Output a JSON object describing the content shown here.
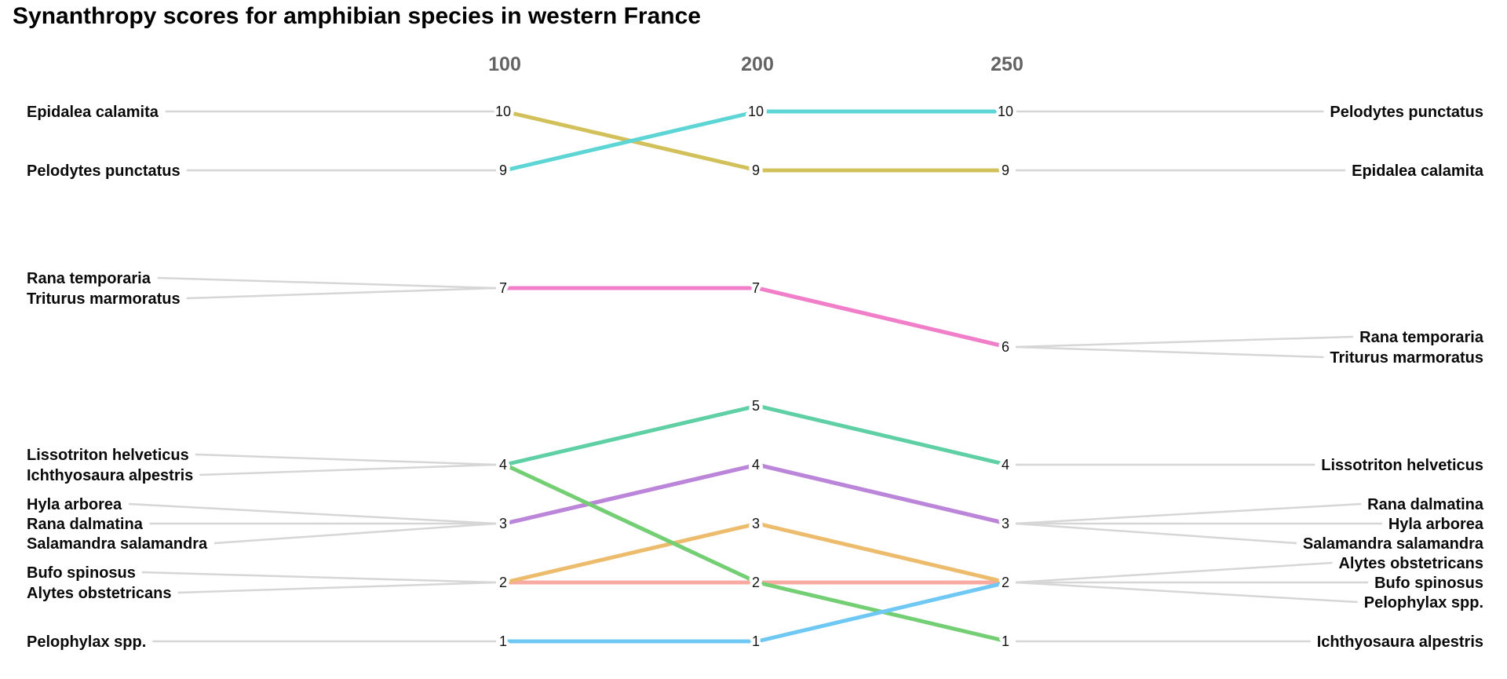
{
  "chart_data": {
    "type": "line",
    "subtype": "slope-bump-chart",
    "title": "Synanthropy scores for amphibian species in western France",
    "x_columns": [
      "100",
      "200",
      "250"
    ],
    "value_axis_range": [
      1,
      10
    ],
    "grid": false,
    "legend": "none",
    "series": [
      {
        "name": "Epidalea calamita",
        "values": [
          10,
          9,
          9
        ],
        "color": "#d2c05b"
      },
      {
        "name": "Triturus marmoratus",
        "values": [
          7,
          7,
          6
        ],
        "color": "#f07ec9"
      },
      {
        "name": "Rana temporaria",
        "values": [
          7,
          7,
          6
        ],
        "color": "#f07ec9"
      },
      {
        "name": "Pelodytes punctatus",
        "values": [
          9,
          10,
          10
        ],
        "color": "#5dd5d5"
      },
      {
        "name": "Salamandra salamandra",
        "values": [
          3,
          4,
          3
        ],
        "color": "#bb86d9"
      },
      {
        "name": "Rana dalmatina",
        "values": [
          3,
          4,
          3
        ],
        "color": "#bb86d9"
      },
      {
        "name": "Hyla arborea",
        "values": [
          3,
          4,
          3
        ],
        "color": "#bb86d9"
      },
      {
        "name": "Lissotriton helveticus",
        "values": [
          4,
          5,
          4
        ],
        "color": "#5fd0a5"
      },
      {
        "name": "Alytes obstetricans",
        "values": [
          2,
          2,
          2
        ],
        "color": "#f8aaa2"
      },
      {
        "name": "Bufo spinosus",
        "values": [
          2,
          3,
          2
        ],
        "color": "#edbb6c"
      },
      {
        "name": "Ichthyosaura alpestris",
        "values": [
          4,
          2,
          1
        ],
        "color": "#74ce74"
      },
      {
        "name": "Pelophylax spp.",
        "values": [
          1,
          1,
          2
        ],
        "color": "#6ec8f3"
      }
    ],
    "left_label_groups": [
      {
        "value": 10,
        "names": [
          "Epidalea calamita"
        ]
      },
      {
        "value": 9,
        "names": [
          "Pelodytes punctatus"
        ]
      },
      {
        "value": 7,
        "names": [
          "Rana temporaria",
          "Triturus marmoratus"
        ]
      },
      {
        "value": 4,
        "names": [
          "Lissotriton helveticus",
          "Ichthyosaura alpestris"
        ]
      },
      {
        "value": 3,
        "names": [
          "Hyla arborea",
          "Rana dalmatina",
          "Salamandra salamandra"
        ]
      },
      {
        "value": 2,
        "names": [
          "Bufo spinosus",
          "Alytes obstetricans"
        ]
      },
      {
        "value": 1,
        "names": [
          "Pelophylax spp."
        ]
      }
    ],
    "right_label_groups": [
      {
        "value": 10,
        "names": [
          "Pelodytes punctatus"
        ]
      },
      {
        "value": 9,
        "names": [
          "Epidalea calamita"
        ]
      },
      {
        "value": 6,
        "names": [
          "Rana temporaria",
          "Triturus marmoratus"
        ]
      },
      {
        "value": 4,
        "names": [
          "Lissotriton helveticus"
        ]
      },
      {
        "value": 3,
        "names": [
          "Rana dalmatina",
          "Hyla arborea",
          "Salamandra salamandra"
        ]
      },
      {
        "value": 2,
        "names": [
          "Alytes obstetricans",
          "Bufo spinosus",
          "Pelophylax spp."
        ]
      },
      {
        "value": 1,
        "names": [
          "Ichthyosaura alpestris"
        ]
      }
    ],
    "colors": {
      "title_text": "#000000",
      "column_header_text": "#636363",
      "species_label_text": "#0a0a0a",
      "value_label_text": "#111111",
      "leader_line": "#d6d6d6",
      "background": "#ffffff"
    }
  }
}
